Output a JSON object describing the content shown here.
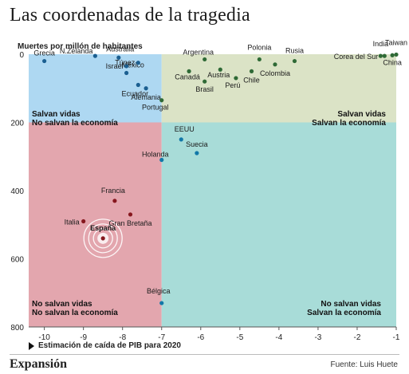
{
  "title": "Las coordenadas de la tragedia",
  "footer": {
    "brand": "Expansión",
    "source": "Fuente: Luis Huete"
  },
  "chart_data": {
    "type": "scatter",
    "title": "Las coordenadas de la tragedia",
    "ylabel": "Muertes por millón de habitantes",
    "xlabel": "Estimación de caída de PIB para 2020",
    "xlim": [
      -10.4,
      -1
    ],
    "ylim": [
      0,
      800
    ],
    "y_inverted": true,
    "x_ticks": [
      -10,
      -9,
      -8,
      -7,
      -6,
      -5,
      -4,
      -3,
      -2,
      -1
    ],
    "y_ticks": [
      0,
      200,
      400,
      600,
      800
    ],
    "thresholds": {
      "x": -7,
      "y": 200
    },
    "colors": {
      "top_left": "#aed8f2",
      "top_right": "#dbe3c6",
      "bottom_left": "#e3a6ae",
      "bottom_right": "#a8dcd8",
      "dot_top_left": "#1b5f91",
      "dot_top_right": "#2f6a36",
      "dot_bottom_left": "#86171e",
      "dot_bottom_right": "#1278a8",
      "espana_highlight": "#ffffff"
    },
    "quadrant_labels": [
      {
        "id": "top_left",
        "line1": "Salvan vidas",
        "line2": "No salvan la economía"
      },
      {
        "id": "top_right",
        "line1": "Salvan vidas",
        "line2": "Salvan la economía"
      },
      {
        "id": "bottom_left",
        "line1": "No salvan vidas",
        "line2": "No salvan la economía"
      },
      {
        "id": "bottom_right",
        "line1": "No salvan vidas",
        "line2": "Salvan la economía"
      }
    ],
    "points": [
      {
        "name": "Grecia",
        "x": -10.0,
        "y": 20
      },
      {
        "name": "Australia",
        "x": -8.1,
        "y": 10
      },
      {
        "name": "N.Zelanda",
        "x": -8.7,
        "y": 5
      },
      {
        "name": "México",
        "x": -7.9,
        "y": 55
      },
      {
        "name": "Israel",
        "x": -7.9,
        "y": 35
      },
      {
        "name": "Túnez",
        "x": -7.6,
        "y": 25
      },
      {
        "name": "Ecuador",
        "x": -7.6,
        "y": 90
      },
      {
        "name": "Alemania",
        "x": -7.4,
        "y": 100
      },
      {
        "name": "Portugal",
        "x": -7.0,
        "y": 135
      },
      {
        "name": "Argentina",
        "x": -5.9,
        "y": 15
      },
      {
        "name": "Canadá",
        "x": -6.3,
        "y": 50
      },
      {
        "name": "Austria",
        "x": -5.5,
        "y": 45
      },
      {
        "name": "Brasil",
        "x": -5.9,
        "y": 80
      },
      {
        "name": "Perú",
        "x": -5.1,
        "y": 70
      },
      {
        "name": "Polonia",
        "x": -4.5,
        "y": 15
      },
      {
        "name": "Chile",
        "x": -4.7,
        "y": 50
      },
      {
        "name": "Colombia",
        "x": -4.1,
        "y": 30
      },
      {
        "name": "Rusia",
        "x": -3.6,
        "y": 20
      },
      {
        "name": "India",
        "x": -1.4,
        "y": 5
      },
      {
        "name": "Taiwan",
        "x": -1.0,
        "y": 1
      },
      {
        "name": "Corea del Sur",
        "x": -1.3,
        "y": 5
      },
      {
        "name": "China",
        "x": -1.1,
        "y": 3
      },
      {
        "name": "EEUU",
        "x": -6.5,
        "y": 250
      },
      {
        "name": "Holanda",
        "x": -7.0,
        "y": 310
      },
      {
        "name": "Suecia",
        "x": -6.1,
        "y": 290
      },
      {
        "name": "Francia",
        "x": -8.2,
        "y": 430
      },
      {
        "name": "Italia",
        "x": -9.0,
        "y": 490
      },
      {
        "name": "España",
        "x": -8.5,
        "y": 540
      },
      {
        "name": "Gran Bretaña",
        "x": -7.8,
        "y": 470
      },
      {
        "name": "Bélgica",
        "x": -7.0,
        "y": 730
      }
    ]
  }
}
